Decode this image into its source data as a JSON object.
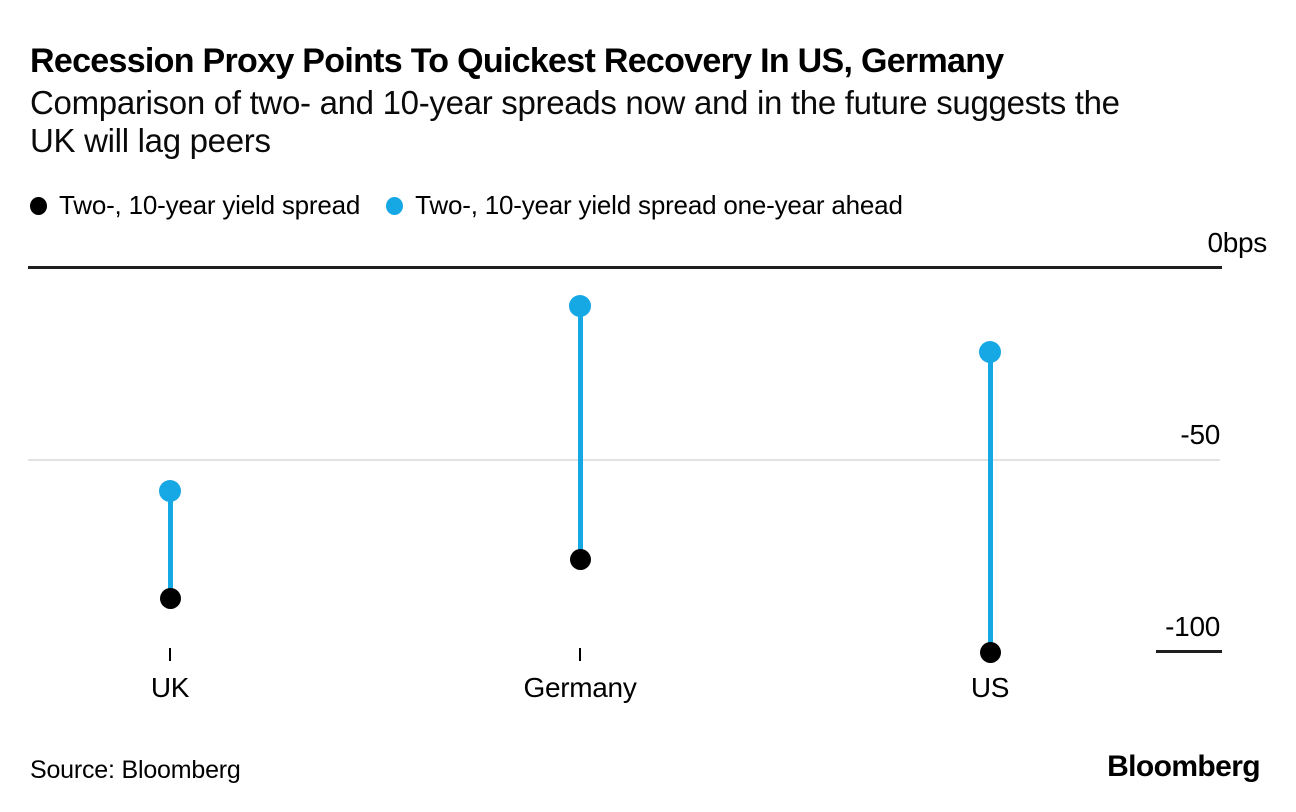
{
  "header": {
    "title": "Recession Proxy Points To Quickest Recovery In US, Germany",
    "subtitle_lines": [
      "Comparison of two- and 10-year spreads now and in the future suggests the",
      "UK will lag peers"
    ]
  },
  "legend": {
    "items": [
      {
        "label": "Two-, 10-year yield spread",
        "color": "#000000"
      },
      {
        "label": "Two-, 10-year yield spread one-year ahead",
        "color": "#16a8e4"
      }
    ]
  },
  "chart_data": {
    "type": "scatter",
    "subtype": "dumbbell",
    "unit": "bps",
    "categories": [
      "UK",
      "Germany",
      "US"
    ],
    "series": [
      {
        "name": "Two-, 10-year yield spread",
        "color": "#000000",
        "values": [
          -86,
          -76,
          -100
        ]
      },
      {
        "name": "Two-, 10-year yield spread one-year ahead",
        "color": "#16a8e4",
        "values": [
          -58,
          -10,
          -22
        ]
      }
    ],
    "ylim": [
      -105,
      0
    ],
    "yticks": [
      {
        "label": "0bps",
        "value": 0,
        "line": "dark",
        "full": true
      },
      {
        "label": "-50",
        "value": -50,
        "line": "light",
        "full": true
      },
      {
        "label": "-100",
        "value": -100,
        "line": "dark",
        "full": false
      }
    ],
    "legend_position": "top",
    "grid": "horizontal"
  },
  "footer": {
    "source": "Source: Bloomberg",
    "logo": "Bloomberg"
  }
}
